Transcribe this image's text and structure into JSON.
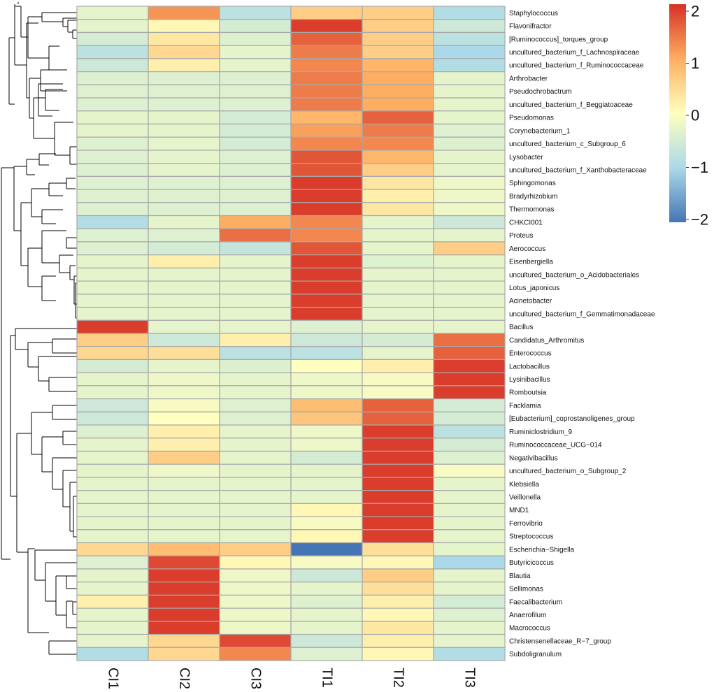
{
  "chart_data": {
    "type": "heatmap",
    "title": "",
    "columns": [
      "CI1",
      "CI2",
      "CI3",
      "TI1",
      "TI2",
      "TI3"
    ],
    "rows": [
      "Staphylococcus",
      "Flavonifractor",
      "[Ruminococcus]_torques_group",
      "uncultured_bacterium_f_Lachnospiraceae",
      "uncultured_bacterium_f_Ruminococcaceae",
      "Arthrobacter",
      "Pseudochrobactrum",
      "uncultured_bacterium_f_Beggiatoaceae",
      "Pseudomonas",
      "Corynebacterium_1",
      "uncultured_bacterium_c_Subgroup_6",
      "Lysobacter",
      "uncultured_bacterium_f_Xanthobacteraceae",
      "Sphingomonas",
      "Bradyrhizobium",
      "Thermomonas",
      "CHKCI001",
      "Proteus",
      "Aerococcus",
      "Eisenbergiella",
      "uncultured_bacterium_o_Acidobacteriales",
      "Lotus_japonicus",
      "Acinetobacter",
      "uncultured_bacterium_f_Gemmatimonadaceae",
      "Bacillus",
      "Candidatus_Arthromitus",
      "Enterococcus",
      "Lactobacillus",
      "Lysinibacillus",
      "Romboutsia",
      "Facklamia",
      "[Eubacterium]_coprostanoligenes_group",
      "Ruminiclostridium_9",
      "Ruminococcaceae_UCG−014",
      "Negativibacillus",
      "uncultured_bacterium_o_Subgroup_2",
      "Klebsiella",
      "Veillonella",
      "MND1",
      "Ferrovibrio",
      "Streptococcus",
      "Escherichia−Shigella",
      "Butyricicoccus",
      "Blautia",
      "Sellimonas",
      "Faecalibacterium",
      "Anaerofilum",
      "Macrococcus",
      "Christensenellaceae_R−7_group",
      "Subdoligranulum"
    ],
    "values": [
      [
        -0.3,
        1.2,
        -0.8,
        0.6,
        0.6,
        -0.9
      ],
      [
        -0.3,
        0.1,
        -0.5,
        1.9,
        0.6,
        -0.6
      ],
      [
        -0.5,
        0.3,
        -0.4,
        1.6,
        0.6,
        -0.8
      ],
      [
        -0.8,
        0.5,
        -0.3,
        1.4,
        0.6,
        -1.0
      ],
      [
        -0.6,
        0.2,
        -0.3,
        1.3,
        0.9,
        -0.9
      ],
      [
        -0.4,
        -0.4,
        -0.4,
        1.4,
        1.0,
        -0.3
      ],
      [
        -0.4,
        -0.4,
        -0.4,
        1.4,
        1.0,
        -0.3
      ],
      [
        -0.4,
        -0.4,
        -0.4,
        1.4,
        1.0,
        -0.3
      ],
      [
        -0.3,
        -0.3,
        -0.5,
        0.9,
        1.6,
        -0.3
      ],
      [
        -0.3,
        -0.3,
        -0.5,
        1.1,
        1.4,
        -0.4
      ],
      [
        -0.4,
        -0.3,
        -0.5,
        1.3,
        1.3,
        -0.4
      ],
      [
        -0.4,
        -0.3,
        -0.4,
        1.7,
        0.9,
        -0.3
      ],
      [
        -0.4,
        -0.3,
        -0.4,
        1.7,
        0.6,
        -0.3
      ],
      [
        -0.4,
        -0.4,
        -0.4,
        1.9,
        0.3,
        -0.2
      ],
      [
        -0.4,
        -0.4,
        -0.4,
        1.9,
        0.2,
        -0.2
      ],
      [
        -0.4,
        -0.4,
        -0.4,
        1.9,
        0.3,
        -0.2
      ],
      [
        -0.9,
        -0.3,
        1.0,
        1.3,
        -0.3,
        -0.6
      ],
      [
        -0.4,
        -0.4,
        1.5,
        1.3,
        -0.3,
        -0.3
      ],
      [
        -0.4,
        -0.5,
        -0.7,
        1.7,
        -0.3,
        0.6
      ],
      [
        -0.3,
        0.2,
        -0.3,
        1.9,
        -0.4,
        -0.3
      ],
      [
        -0.3,
        -0.3,
        -0.3,
        1.9,
        -0.3,
        -0.3
      ],
      [
        -0.3,
        -0.3,
        -0.3,
        1.9,
        -0.3,
        -0.3
      ],
      [
        -0.3,
        -0.3,
        -0.3,
        1.9,
        -0.3,
        -0.3
      ],
      [
        -0.3,
        -0.3,
        -0.3,
        1.9,
        -0.3,
        -0.3
      ],
      [
        1.9,
        -0.3,
        -0.3,
        -0.4,
        -0.3,
        -0.3
      ],
      [
        0.6,
        -0.6,
        0.2,
        -0.6,
        -0.5,
        1.5
      ],
      [
        0.5,
        0.4,
        -0.8,
        -0.8,
        -0.3,
        1.6
      ],
      [
        -0.5,
        -0.3,
        -0.4,
        0.0,
        0.2,
        1.9
      ],
      [
        -0.3,
        -0.2,
        -0.3,
        -0.2,
        -0.1,
        1.9
      ],
      [
        -0.3,
        -0.2,
        -0.3,
        -0.2,
        -0.1,
        1.9
      ],
      [
        -0.6,
        -0.1,
        -0.4,
        0.8,
        1.6,
        -0.5
      ],
      [
        -0.6,
        0.0,
        -0.4,
        0.7,
        1.6,
        -0.5
      ],
      [
        -0.4,
        0.2,
        -0.3,
        -0.2,
        1.9,
        -0.8
      ],
      [
        -0.3,
        0.2,
        -0.3,
        -0.2,
        1.9,
        -0.5
      ],
      [
        -0.3,
        0.6,
        -0.3,
        -0.5,
        1.9,
        -0.4
      ],
      [
        -0.3,
        -0.2,
        -0.3,
        -0.3,
        1.9,
        -0.1
      ],
      [
        -0.3,
        -0.3,
        -0.3,
        -0.3,
        1.9,
        -0.3
      ],
      [
        -0.3,
        -0.3,
        -0.3,
        -0.3,
        1.9,
        -0.3
      ],
      [
        -0.3,
        -0.3,
        -0.3,
        0.1,
        1.9,
        -0.3
      ],
      [
        -0.3,
        -0.3,
        -0.3,
        -0.1,
        1.9,
        -0.3
      ],
      [
        -0.3,
        -0.3,
        -0.3,
        0.1,
        1.9,
        -0.3
      ],
      [
        0.5,
        0.8,
        0.6,
        -2.0,
        0.4,
        -0.3
      ],
      [
        -0.4,
        1.8,
        0.1,
        -0.1,
        0.1,
        -1.0
      ],
      [
        -0.3,
        1.9,
        -0.2,
        -0.6,
        0.6,
        -0.3
      ],
      [
        -0.3,
        1.9,
        -0.2,
        -0.3,
        0.4,
        -0.3
      ],
      [
        0.2,
        1.9,
        -0.2,
        -0.4,
        0.2,
        -0.5
      ],
      [
        -0.3,
        1.9,
        -0.2,
        -0.3,
        0.1,
        -0.4
      ],
      [
        -0.3,
        1.9,
        -0.2,
        -0.3,
        0.3,
        -0.3
      ],
      [
        -0.3,
        0.5,
        1.8,
        -0.6,
        0.2,
        -0.3
      ],
      [
        -0.9,
        0.5,
        1.3,
        -0.4,
        0.1,
        -0.9
      ]
    ],
    "legend": {
      "title": "",
      "ticks": [
        "2",
        "1",
        "0",
        "−1",
        "−2"
      ],
      "range": [
        -2,
        2
      ],
      "position": "top-right"
    },
    "colors": {
      "low": "#4575b4",
      "mid": "#ffffbf",
      "high": "#d73027",
      "grid": "#a8a8a8"
    },
    "dendrogram": {
      "row_order": [
        "Staphylococcus",
        "Flavonifractor",
        "[Ruminococcus]_torques_group",
        "uncultured_bacterium_f_Lachnospiraceae",
        "uncultured_bacterium_f_Ruminococcaceae",
        "Arthrobacter",
        "Pseudochrobactrum",
        "uncultured_bacterium_f_Beggiatoaceae",
        "Pseudomonas",
        "Corynebacterium_1",
        "uncultured_bacterium_c_Subgroup_6",
        "Lysobacter",
        "uncultured_bacterium_f_Xanthobacteraceae",
        "Sphingomonas",
        "Bradyrhizobium",
        "Thermomonas",
        "CHKCI001",
        "Proteus",
        "Aerococcus",
        "Eisenbergiella",
        "uncultured_bacterium_o_Acidobacteriales",
        "Lotus_japonicus",
        "Acinetobacter",
        "uncultured_bacterium_f_Gemmatimonadaceae",
        "Bacillus",
        "Candidatus_Arthromitus",
        "Enterococcus",
        "Lactobacillus",
        "Lysinibacillus",
        "Romboutsia",
        "Facklamia",
        "[Eubacterium]_coprostanoligenes_group",
        "Ruminiclostridium_9",
        "Ruminococcaceae_UCG−014",
        "Negativibacillus",
        "uncultured_bacterium_o_Subgroup_2",
        "Klebsiella",
        "Veillonella",
        "MND1",
        "Ferrovibrio",
        "Streptococcus",
        "Escherichia−Shigella",
        "Butyricicoccus",
        "Blautia",
        "Sellimonas",
        "Faecalibacterium",
        "Anaerofilum",
        "Macrococcus",
        "Christensenellaceae_R−7_group",
        "Subdoligranulum"
      ],
      "merges": [
        [
          "Faecalibacterium",
          "Anaerofilum",
          0.3
        ],
        [
          "Faecalibacterium+Anaerofilum",
          "Macrococcus",
          0.35
        ],
        [
          "Blautia",
          "Sellimonas",
          0.4
        ],
        [
          "Blautia+Sellimonas",
          "Faecalibacterium+Anaerofilum+Macrococcus",
          0.55
        ],
        [
          "Butyricicoccus",
          "Blautia+Sellimonas+Faecalibacterium+Anaerofilum+Macrococcus",
          0.7
        ],
        [
          "Christensenellaceae_R−7_group",
          "Subdoligranulum",
          0.75
        ],
        [
          "Escherichia−Shigella",
          "Butyricicoccus+Blautia+Sellimonas+Faecalibacterium+Anaerofilum+Macrococcus",
          0.8
        ],
        [
          "Escherichia−Shigella+Butyricicoccus+Blautia+Sellimonas+Faecalibacterium+Anaerofilum+Macrococcus",
          "Christensenellaceae_R−7_group+Subdoligranulum",
          0.85
        ]
      ]
    }
  }
}
